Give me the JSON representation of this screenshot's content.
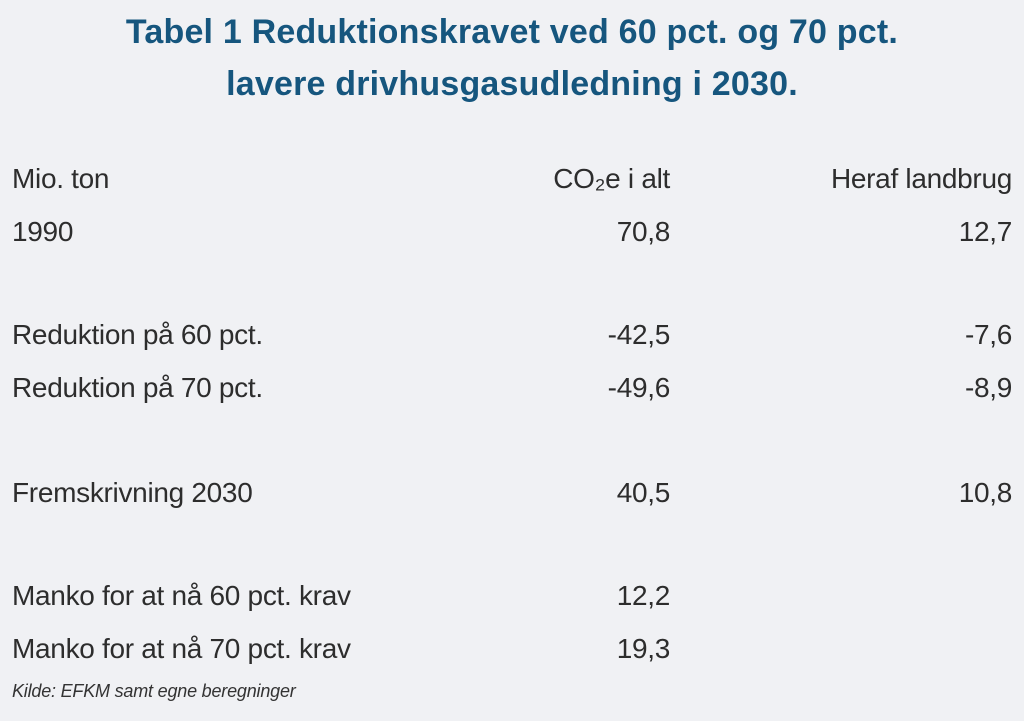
{
  "page": {
    "background_color": "#f0f1f4",
    "title_color": "#16567e",
    "text_color": "#2d2d2d"
  },
  "title": {
    "line1": "Tabel 1 Reduktionskravet ved 60 pct. og 70 pct.",
    "line2": "lavere drivhusgasudledning i 2030."
  },
  "table": {
    "header": {
      "col1": "Mio. ton",
      "col2": "CO₂e i alt",
      "col3": "Heraf landbrug"
    },
    "rows": [
      {
        "label": "1990",
        "col2": "70,8",
        "col3": "12,7"
      },
      {
        "label": "Reduktion på 60 pct.",
        "col2": "-42,5",
        "col3": "-7,6"
      },
      {
        "label": "Reduktion på 70 pct.",
        "col2": "-49,6",
        "col3": "-8,9"
      },
      {
        "label": "Fremskrivning 2030",
        "col2": "40,5",
        "col3": "10,8"
      },
      {
        "label": "Manko for at nå 60 pct. krav",
        "col2": "12,2",
        "col3": ""
      },
      {
        "label": "Manko for at nå 70 pct. krav",
        "col2": "19,3",
        "col3": ""
      }
    ]
  },
  "source": "Kilde: EFKM samt egne beregninger",
  "chart_data": {
    "type": "table",
    "title": "Tabel 1 Reduktionskravet ved 60 pct. og 70 pct. lavere drivhusgasudledning i 2030.",
    "unit": "Mio. ton",
    "columns": [
      "Mio. ton",
      "CO2e i alt",
      "Heraf landbrug"
    ],
    "rows": [
      {
        "label": "1990",
        "co2e_i_alt": 70.8,
        "heraf_landbrug": 12.7
      },
      {
        "label": "Reduktion på 60 pct.",
        "co2e_i_alt": -42.5,
        "heraf_landbrug": -7.6
      },
      {
        "label": "Reduktion på 70 pct.",
        "co2e_i_alt": -49.6,
        "heraf_landbrug": -8.9
      },
      {
        "label": "Fremskrivning 2030",
        "co2e_i_alt": 40.5,
        "heraf_landbrug": 10.8
      },
      {
        "label": "Manko for at nå 60 pct. krav",
        "co2e_i_alt": 12.2,
        "heraf_landbrug": null
      },
      {
        "label": "Manko for at nå 70 pct. krav",
        "co2e_i_alt": 19.3,
        "heraf_landbrug": null
      }
    ],
    "source": "Kilde: EFKM samt egne beregninger",
    "legend_position": "none",
    "grid": false
  }
}
